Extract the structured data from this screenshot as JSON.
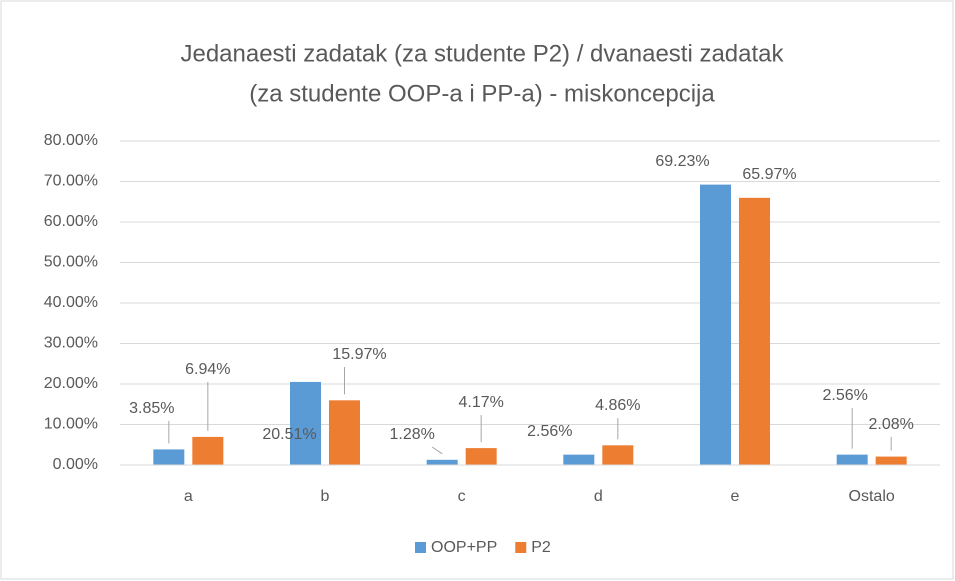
{
  "chart_data": {
    "type": "bar",
    "title": "Jedanaesti zadatak (za studente P2) / dvanaesti zadatak",
    "subtitle": "(za studente OOP-a i PP-a) - miskoncepcija",
    "categories": [
      "a",
      "b",
      "c",
      "d",
      "e",
      "Ostalo"
    ],
    "series": [
      {
        "name": "OOP+PP",
        "color": "#5b9bd5",
        "values": [
          3.85,
          20.51,
          1.28,
          2.56,
          69.23,
          2.56
        ],
        "value_labels": [
          "3.85%",
          "20.51%",
          "1.28%",
          "2.56%",
          "69.23%",
          "2.56%"
        ]
      },
      {
        "name": "P2",
        "color": "#ed7d31",
        "values": [
          6.94,
          15.97,
          4.17,
          4.86,
          65.97,
          2.08
        ],
        "value_labels": [
          "6.94%",
          "15.97%",
          "4.17%",
          "4.86%",
          "65.97%",
          "2.08%"
        ]
      }
    ],
    "ylim": [
      0,
      80
    ],
    "yticks": [
      {
        "value": 0,
        "label": "0.00%"
      },
      {
        "value": 10,
        "label": "10.00%"
      },
      {
        "value": 20,
        "label": "20.00%"
      },
      {
        "value": 30,
        "label": "30.00%"
      },
      {
        "value": 40,
        "label": "40.00%"
      },
      {
        "value": 50,
        "label": "50.00%"
      },
      {
        "value": 60,
        "label": "60.00%"
      },
      {
        "value": 70,
        "label": "70.00%"
      },
      {
        "value": 80,
        "label": "80.00%"
      }
    ],
    "grid": true,
    "legend": "bottom"
  }
}
